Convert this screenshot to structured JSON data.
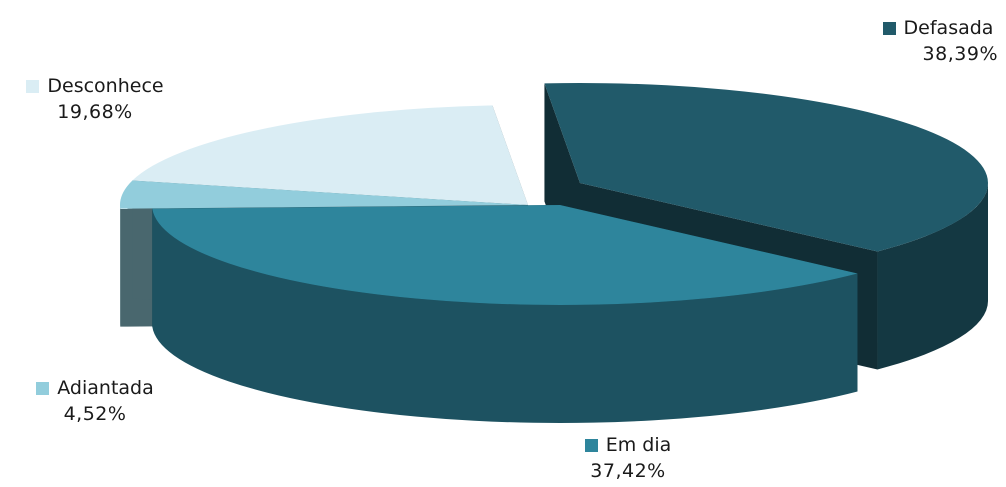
{
  "chart_data": {
    "type": "pie",
    "three_d": true,
    "exploded": true,
    "slices": [
      {
        "label": "Defasada",
        "value_label": "38,39%",
        "value": 38.39,
        "color": "#215a6a"
      },
      {
        "label": "Em dia",
        "value_label": "37,42%",
        "value": 37.42,
        "color": "#2e859c"
      },
      {
        "label": "Adiantada",
        "value_label": "4,52%",
        "value": 4.52,
        "color": "#92cddc"
      },
      {
        "label": "Desconhece",
        "value_label": "19,68%",
        "value": 19.68,
        "color": "#daedf4"
      }
    ]
  }
}
